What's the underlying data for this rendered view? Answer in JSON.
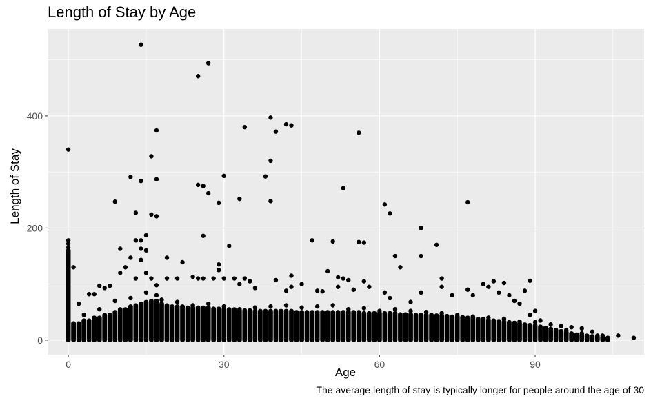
{
  "chart_data": {
    "type": "scatter",
    "title": "Length of Stay by Age",
    "xlabel": "Age",
    "ylabel": "Length of Stay",
    "caption": "The average length of stay is typically longer for people around the age of 30",
    "xlim": [
      -4,
      111
    ],
    "ylim": [
      -26,
      555
    ],
    "x_ticks": [
      0,
      30,
      60,
      90
    ],
    "y_ticks": [
      0,
      200,
      400
    ],
    "x_tick_labels": [
      "0",
      "30",
      "60",
      "90"
    ],
    "y_tick_labels": [
      "0",
      "200",
      "400"
    ],
    "grid": true,
    "background": "#EBEBEB",
    "point_color": "#000000",
    "points": [
      [
        0,
        340
      ],
      [
        0,
        178
      ],
      [
        0,
        172
      ],
      [
        0,
        165
      ],
      [
        0,
        150
      ],
      [
        0,
        140
      ],
      [
        0,
        128
      ],
      [
        0,
        118
      ],
      [
        0,
        105
      ],
      [
        0,
        95
      ],
      [
        1,
        130
      ],
      [
        2,
        65
      ],
      [
        4,
        82
      ],
      [
        5,
        82
      ],
      [
        6,
        97
      ],
      [
        7,
        93
      ],
      [
        8,
        97
      ],
      [
        9,
        247
      ],
      [
        10,
        163
      ],
      [
        10,
        120
      ],
      [
        11,
        130
      ],
      [
        12,
        291
      ],
      [
        12,
        147
      ],
      [
        13,
        227
      ],
      [
        13,
        178
      ],
      [
        13,
        110
      ],
      [
        14,
        527
      ],
      [
        14,
        284
      ],
      [
        14,
        178
      ],
      [
        14,
        163
      ],
      [
        14,
        143
      ],
      [
        15,
        187
      ],
      [
        15,
        160
      ],
      [
        15,
        120
      ],
      [
        16,
        328
      ],
      [
        16,
        224
      ],
      [
        16,
        110
      ],
      [
        17,
        374
      ],
      [
        17,
        287
      ],
      [
        17,
        221
      ],
      [
        17,
        98
      ],
      [
        17,
        80
      ],
      [
        19,
        147
      ],
      [
        19,
        110
      ],
      [
        21,
        110
      ],
      [
        22,
        139
      ],
      [
        24,
        113
      ],
      [
        25,
        471
      ],
      [
        25,
        277
      ],
      [
        25,
        110
      ],
      [
        26,
        275
      ],
      [
        26,
        186
      ],
      [
        26,
        110
      ],
      [
        27,
        494
      ],
      [
        27,
        262
      ],
      [
        28,
        110
      ],
      [
        29,
        245
      ],
      [
        29,
        135
      ],
      [
        29,
        125
      ],
      [
        30,
        293
      ],
      [
        30,
        110
      ],
      [
        31,
        168
      ],
      [
        32,
        110
      ],
      [
        33,
        252
      ],
      [
        33,
        100
      ],
      [
        34,
        380
      ],
      [
        34,
        110
      ],
      [
        35,
        105
      ],
      [
        36,
        93
      ],
      [
        38,
        292
      ],
      [
        39,
        397
      ],
      [
        39,
        320
      ],
      [
        39,
        248
      ],
      [
        40,
        372
      ],
      [
        40,
        107
      ],
      [
        42,
        385
      ],
      [
        42,
        88
      ],
      [
        43,
        383
      ],
      [
        43,
        115
      ],
      [
        43,
        95
      ],
      [
        45,
        100
      ],
      [
        47,
        178
      ],
      [
        48,
        88
      ],
      [
        49,
        87
      ],
      [
        50,
        123
      ],
      [
        51,
        176
      ],
      [
        52,
        112
      ],
      [
        52,
        95
      ],
      [
        53,
        271
      ],
      [
        53,
        110
      ],
      [
        54,
        107
      ],
      [
        55,
        90
      ],
      [
        56,
        370
      ],
      [
        56,
        175
      ],
      [
        57,
        174
      ],
      [
        57,
        105
      ],
      [
        58,
        95
      ],
      [
        61,
        242
      ],
      [
        61,
        85
      ],
      [
        62,
        226
      ],
      [
        62,
        75
      ],
      [
        63,
        150
      ],
      [
        64,
        130
      ],
      [
        66,
        68
      ],
      [
        68,
        200
      ],
      [
        68,
        150
      ],
      [
        68,
        85
      ],
      [
        71,
        170
      ],
      [
        72,
        110
      ],
      [
        72,
        95
      ],
      [
        74,
        80
      ],
      [
        77,
        246
      ],
      [
        77,
        90
      ],
      [
        78,
        80
      ],
      [
        80,
        100
      ],
      [
        81,
        95
      ],
      [
        82,
        105
      ],
      [
        83,
        85
      ],
      [
        84,
        102
      ],
      [
        85,
        80
      ],
      [
        86,
        70
      ],
      [
        87,
        65
      ],
      [
        88,
        88
      ],
      [
        89,
        106
      ],
      [
        89,
        45
      ],
      [
        90,
        52
      ],
      [
        91,
        35
      ],
      [
        93,
        28
      ],
      [
        95,
        25
      ],
      [
        97,
        23
      ],
      [
        99,
        21
      ],
      [
        101,
        15
      ],
      [
        103,
        8
      ],
      [
        104,
        4
      ],
      [
        106,
        8
      ],
      [
        109,
        4
      ],
      [
        0,
        60
      ],
      [
        0,
        45
      ],
      [
        0,
        30
      ],
      [
        0,
        15
      ],
      [
        0,
        5
      ],
      [
        0,
        0
      ],
      [
        3,
        45
      ],
      [
        6,
        55
      ],
      [
        9,
        70
      ],
      [
        12,
        75
      ],
      [
        15,
        85
      ],
      [
        18,
        72
      ],
      [
        21,
        68
      ],
      [
        24,
        62
      ],
      [
        27,
        65
      ],
      [
        30,
        60
      ],
      [
        33,
        55
      ],
      [
        36,
        58
      ],
      [
        39,
        60
      ],
      [
        42,
        62
      ],
      [
        45,
        58
      ],
      [
        48,
        60
      ],
      [
        51,
        62
      ],
      [
        54,
        55
      ],
      [
        57,
        57
      ],
      [
        60,
        52
      ],
      [
        63,
        55
      ],
      [
        66,
        52
      ],
      [
        69,
        50
      ],
      [
        72,
        48
      ],
      [
        75,
        45
      ],
      [
        78,
        42
      ],
      [
        81,
        40
      ],
      [
        84,
        38
      ],
      [
        87,
        33
      ],
      [
        90,
        32
      ],
      [
        93,
        20
      ],
      [
        96,
        18
      ],
      [
        99,
        12
      ],
      [
        102,
        8
      ]
    ],
    "band_points": [
      [
        0,
        160
      ],
      [
        1,
        30
      ],
      [
        2,
        30
      ],
      [
        3,
        35
      ],
      [
        4,
        35
      ],
      [
        5,
        40
      ],
      [
        6,
        40
      ],
      [
        7,
        45
      ],
      [
        8,
        45
      ],
      [
        9,
        50
      ],
      [
        10,
        55
      ],
      [
        11,
        55
      ],
      [
        12,
        60
      ],
      [
        13,
        62
      ],
      [
        14,
        65
      ],
      [
        15,
        68
      ],
      [
        16,
        70
      ],
      [
        17,
        70
      ],
      [
        18,
        65
      ],
      [
        19,
        62
      ],
      [
        20,
        60
      ],
      [
        21,
        60
      ],
      [
        22,
        60
      ],
      [
        23,
        58
      ],
      [
        24,
        58
      ],
      [
        25,
        58
      ],
      [
        26,
        58
      ],
      [
        27,
        58
      ],
      [
        28,
        56
      ],
      [
        29,
        56
      ],
      [
        30,
        55
      ],
      [
        31,
        55
      ],
      [
        32,
        55
      ],
      [
        33,
        53
      ],
      [
        34,
        53
      ],
      [
        35,
        53
      ],
      [
        36,
        52
      ],
      [
        37,
        52
      ],
      [
        38,
        52
      ],
      [
        39,
        52
      ],
      [
        40,
        52
      ],
      [
        41,
        52
      ],
      [
        42,
        52
      ],
      [
        43,
        52
      ],
      [
        44,
        50
      ],
      [
        45,
        50
      ],
      [
        46,
        50
      ],
      [
        47,
        50
      ],
      [
        48,
        50
      ],
      [
        49,
        50
      ],
      [
        50,
        50
      ],
      [
        51,
        50
      ],
      [
        52,
        50
      ],
      [
        53,
        50
      ],
      [
        54,
        50
      ],
      [
        55,
        50
      ],
      [
        56,
        50
      ],
      [
        57,
        48
      ],
      [
        58,
        48
      ],
      [
        59,
        48
      ],
      [
        60,
        48
      ],
      [
        61,
        48
      ],
      [
        62,
        48
      ],
      [
        63,
        48
      ],
      [
        64,
        46
      ],
      [
        65,
        46
      ],
      [
        66,
        46
      ],
      [
        67,
        45
      ],
      [
        68,
        45
      ],
      [
        69,
        45
      ],
      [
        70,
        45
      ],
      [
        71,
        44
      ],
      [
        72,
        44
      ],
      [
        73,
        43
      ],
      [
        74,
        42
      ],
      [
        75,
        42
      ],
      [
        76,
        41
      ],
      [
        77,
        40
      ],
      [
        78,
        40
      ],
      [
        79,
        38
      ],
      [
        80,
        38
      ],
      [
        81,
        36
      ],
      [
        82,
        35
      ],
      [
        83,
        34
      ],
      [
        84,
        33
      ],
      [
        85,
        32
      ],
      [
        86,
        31
      ],
      [
        87,
        30
      ],
      [
        88,
        28
      ],
      [
        89,
        27
      ],
      [
        90,
        26
      ],
      [
        91,
        24
      ],
      [
        92,
        22
      ],
      [
        93,
        20
      ],
      [
        94,
        18
      ],
      [
        95,
        16
      ],
      [
        96,
        14
      ],
      [
        97,
        12
      ],
      [
        98,
        10
      ],
      [
        99,
        9
      ],
      [
        100,
        8
      ],
      [
        101,
        7
      ],
      [
        102,
        6
      ],
      [
        103,
        5
      ],
      [
        104,
        4
      ]
    ]
  }
}
